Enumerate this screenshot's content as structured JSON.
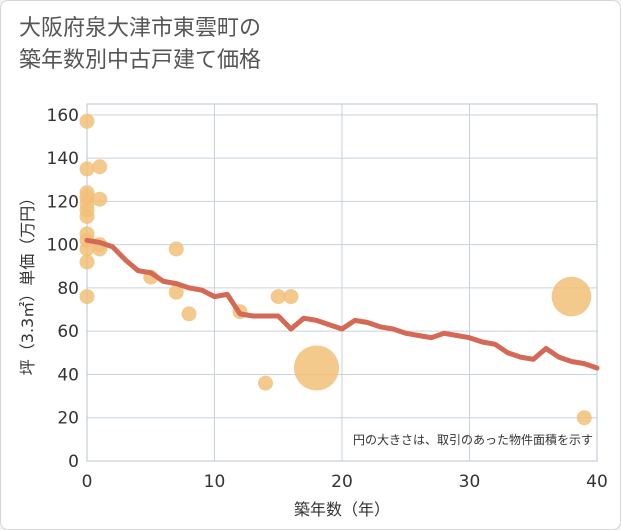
{
  "title_lines": [
    "大阪府泉大津市東雲町の",
    "築年数別中古戸建て価格"
  ],
  "colors": {
    "line": "#d46a55",
    "bubble": "#f2c078",
    "grid": "#c8d2dc",
    "plot_border": "#b8c4cf",
    "text": "#333333"
  },
  "chart_data": {
    "type": "scatter",
    "xlabel": "築年数（年）",
    "ylabel": "坪（3.3㎡）単価（万円）",
    "xlim": [
      0,
      40
    ],
    "ylim": [
      0,
      165
    ],
    "x_ticks": [
      0,
      10,
      20,
      30,
      40
    ],
    "y_ticks": [
      0,
      20,
      40,
      60,
      80,
      100,
      120,
      140,
      160
    ],
    "grid": true,
    "note": "円の大きさは、取引のあった物件面積を示す",
    "points": [
      {
        "x": 0,
        "y": 157,
        "size": 1
      },
      {
        "x": 0,
        "y": 135,
        "size": 1
      },
      {
        "x": 0,
        "y": 124,
        "size": 1
      },
      {
        "x": 0,
        "y": 122,
        "size": 1
      },
      {
        "x": 0,
        "y": 119,
        "size": 1
      },
      {
        "x": 0,
        "y": 116,
        "size": 1
      },
      {
        "x": 0,
        "y": 113,
        "size": 1
      },
      {
        "x": 0,
        "y": 105,
        "size": 1
      },
      {
        "x": 0,
        "y": 102,
        "size": 1
      },
      {
        "x": 0,
        "y": 98,
        "size": 1
      },
      {
        "x": 0,
        "y": 92,
        "size": 1
      },
      {
        "x": 0,
        "y": 76,
        "size": 1
      },
      {
        "x": 1,
        "y": 136,
        "size": 1
      },
      {
        "x": 1,
        "y": 121,
        "size": 1
      },
      {
        "x": 1,
        "y": 100,
        "size": 1
      },
      {
        "x": 1,
        "y": 98,
        "size": 1
      },
      {
        "x": 5,
        "y": 85,
        "size": 1
      },
      {
        "x": 7,
        "y": 98,
        "size": 1
      },
      {
        "x": 7,
        "y": 78,
        "size": 1
      },
      {
        "x": 8,
        "y": 68,
        "size": 1
      },
      {
        "x": 12,
        "y": 69,
        "size": 1
      },
      {
        "x": 14,
        "y": 36,
        "size": 1
      },
      {
        "x": 15,
        "y": 76,
        "size": 1
      },
      {
        "x": 16,
        "y": 76,
        "size": 1
      },
      {
        "x": 18,
        "y": 43,
        "size": 9
      },
      {
        "x": 38,
        "y": 76,
        "size": 7
      },
      {
        "x": 39,
        "y": 20,
        "size": 1
      }
    ],
    "trend_line": {
      "x": [
        0,
        1,
        2,
        3,
        4,
        5,
        6,
        7,
        8,
        9,
        10,
        11,
        12,
        13,
        14,
        15,
        16,
        17,
        18,
        19,
        20,
        21,
        22,
        23,
        24,
        25,
        26,
        27,
        28,
        29,
        30,
        31,
        32,
        33,
        34,
        35,
        36,
        37,
        38,
        39,
        40
      ],
      "y": [
        102,
        101,
        99,
        93,
        88,
        87,
        83,
        82,
        80,
        79,
        76,
        77,
        68,
        67,
        67,
        67,
        61,
        66,
        65,
        63,
        61,
        65,
        64,
        62,
        61,
        59,
        58,
        57,
        59,
        58,
        57,
        55,
        54,
        50,
        48,
        47,
        52,
        48,
        46,
        45,
        43
      ]
    }
  }
}
